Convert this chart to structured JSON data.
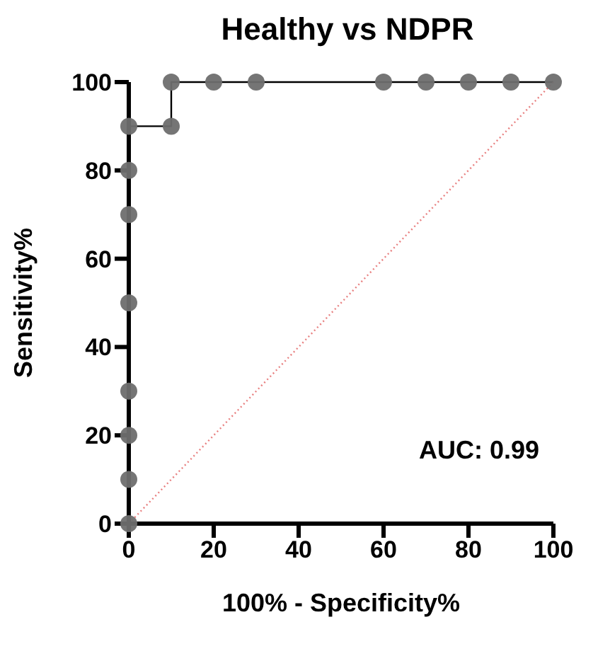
{
  "chart_data": {
    "type": "line",
    "title": "Healthy vs NDPR",
    "xlabel": "100% - Specificity%",
    "ylabel": "Sensitivity%",
    "xlim": [
      0,
      100
    ],
    "xticks": [
      0,
      20,
      40,
      60,
      80,
      100
    ],
    "ylim": [
      0,
      100
    ],
    "yticks": [
      0,
      20,
      40,
      60,
      80,
      100
    ],
    "annotations": [
      "AUC: 0.99"
    ],
    "series": [
      {
        "color": "#6e6e6e",
        "marker": "circle",
        "line_style": "solid",
        "x": [
          0,
          0,
          0,
          0,
          0,
          0,
          0,
          0,
          10,
          10,
          20,
          30,
          60,
          70,
          80,
          90,
          100
        ],
        "values": [
          0,
          10,
          20,
          30,
          50,
          70,
          80,
          90,
          90,
          100,
          100,
          100,
          100,
          100,
          100,
          100,
          100
        ]
      },
      {
        "color": "#e88080",
        "marker": "none",
        "line_style": "dotted",
        "x": [
          0,
          100
        ],
        "values": [
          0,
          100
        ]
      }
    ]
  }
}
